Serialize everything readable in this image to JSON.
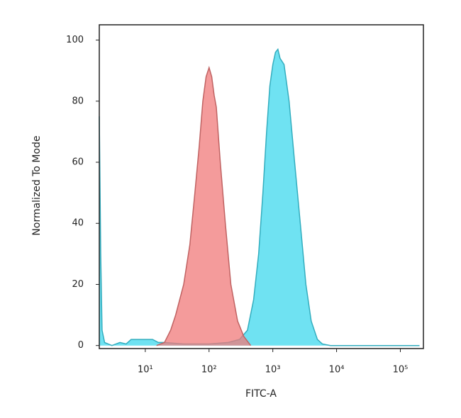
{
  "chart_data": {
    "type": "area",
    "xlabel": "FITC-A",
    "ylabel": "Normalized To Mode",
    "xscale": "log",
    "xlim": [
      1.9,
      230000
    ],
    "ylim": [
      -1,
      105
    ],
    "xticks": [
      {
        "value": 10,
        "label": "10¹"
      },
      {
        "value": 100,
        "label": "10²"
      },
      {
        "value": 1000,
        "label": "10³"
      },
      {
        "value": 10000,
        "label": "10⁴"
      },
      {
        "value": 100000,
        "label": "10⁵"
      }
    ],
    "yticks": [
      0,
      20,
      40,
      60,
      80,
      100
    ],
    "series": [
      {
        "color": "#3fd8ee",
        "x": [
          1.9,
          2.0,
          2.1,
          2.3,
          3,
          4,
          5,
          6,
          8,
          10,
          13,
          16,
          20,
          40,
          100,
          200,
          300,
          400,
          500,
          600,
          700,
          800,
          900,
          1000,
          1100,
          1200,
          1300,
          1500,
          1800,
          2200,
          2700,
          3300,
          4000,
          5000,
          6000,
          8000,
          200000
        ],
        "values": [
          75,
          30,
          5,
          1,
          0,
          1,
          0.5,
          2,
          2,
          2,
          2,
          1,
          1,
          0.5,
          0.5,
          1,
          2,
          5,
          15,
          30,
          50,
          70,
          85,
          92,
          96,
          97,
          94,
          92,
          80,
          60,
          40,
          20,
          8,
          2,
          0.5,
          0,
          0
        ]
      },
      {
        "color": "#f07a7a",
        "x": [
          15,
          20,
          25,
          30,
          40,
          50,
          60,
          70,
          80,
          90,
          100,
          110,
          120,
          130,
          150,
          180,
          220,
          280,
          350,
          450
        ],
        "values": [
          0,
          1,
          5,
          10,
          20,
          33,
          50,
          65,
          80,
          88,
          91,
          88,
          82,
          78,
          60,
          40,
          20,
          8,
          3,
          0
        ]
      }
    ]
  }
}
